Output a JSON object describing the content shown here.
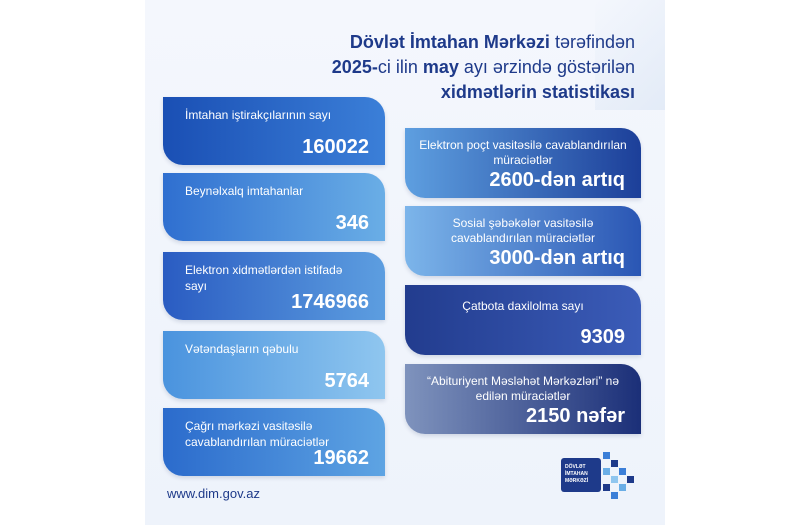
{
  "title": {
    "line1_bold": "Dövlət İmtahan Mərkəzi",
    "line1_rest": " tərəfindən",
    "line2_bold1": "2025-",
    "line2_mid1": "ci ilin ",
    "line2_bold2": "may",
    "line2_rest": " ayı ərzində göstərilən",
    "line3_bold": "xidmətlərin statistikası"
  },
  "left_cards": [
    {
      "label": "İmtahan iştirakçılarının sayı",
      "value": "160022"
    },
    {
      "label": "Beynəlxalq imtahanlar",
      "value": "346"
    },
    {
      "label": "Elektron xidmətlərdən istifadə sayı",
      "value": "1746966"
    },
    {
      "label": "Vətəndaşların qəbulu",
      "value": "5764"
    },
    {
      "label": "Çağrı mərkəzi vasitəsilə cavablandırılan müraciətlər",
      "value": "19662"
    }
  ],
  "right_cards": [
    {
      "label": "Elektron poçt vasitəsilə cavablandırılan müraciətlər",
      "value": "2600-dən artıq"
    },
    {
      "label": "Sosial şəbəkələr vasitəsilə cavablandırılan müraciətlər",
      "value": "3000-dən artıq"
    },
    {
      "label": "Çatbota daxilolma sayı",
      "value": "9309"
    },
    {
      "label": "“Abituriyent Məsləhət Mərkəzləri” nə edilən müraciətlər",
      "value": "2150 nəfər"
    }
  ],
  "website": "www.dim.gov.az",
  "logo": {
    "line1": "DÖVLƏT",
    "line2": "İMTAHAN",
    "line3": "MƏRKƏZİ",
    "color": "#1e3a8a"
  },
  "colors": {
    "title": "#1e3a8a",
    "accent": "#1a4fb4"
  }
}
